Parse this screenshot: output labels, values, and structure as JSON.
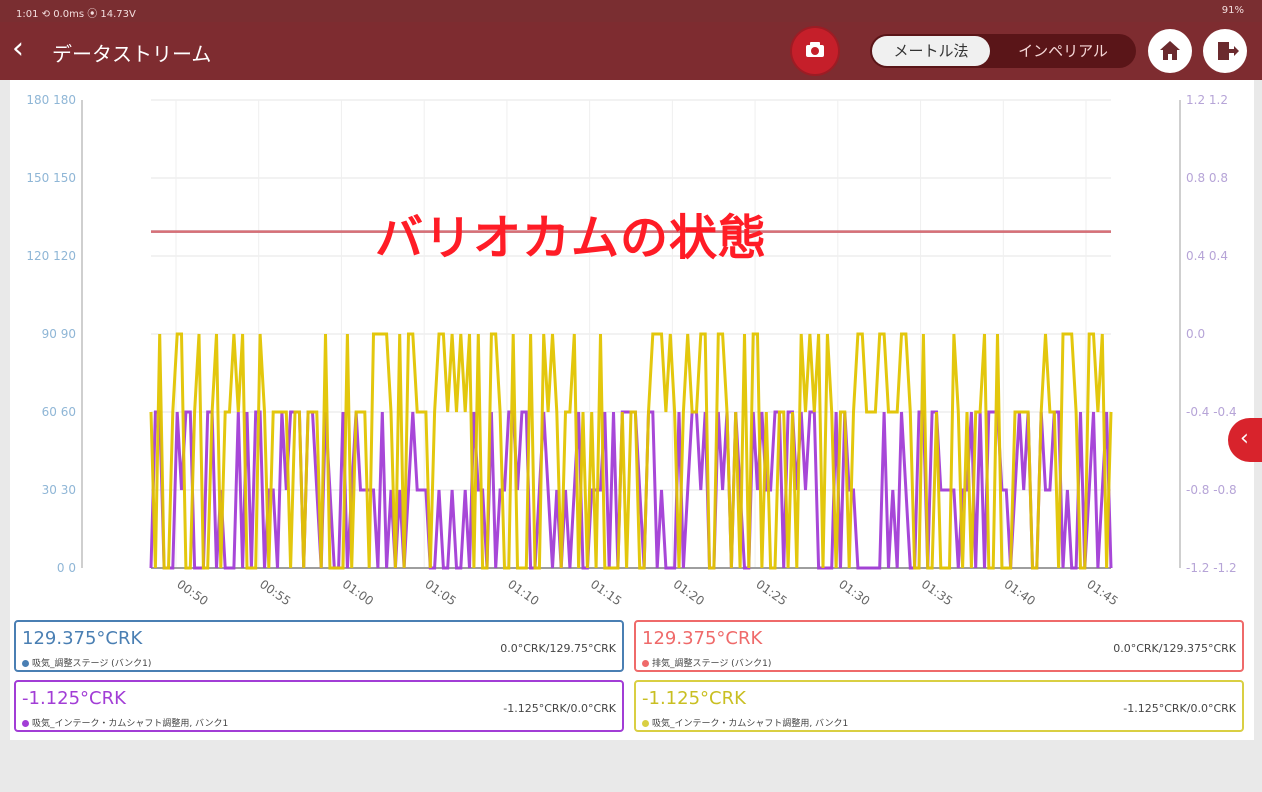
{
  "status_bar": {
    "left": "1:01  ⟲  0.0ms  ⦿  14.73V",
    "right": "91%"
  },
  "app_bar": {
    "title": "データストリーム",
    "back_icon": "chevron-left-icon",
    "camera_icon": "camera-icon",
    "units_toggle": {
      "options": [
        "メートル法",
        "インペリアル"
      ],
      "selected": "メートル法"
    },
    "home_icon": "home-icon",
    "exit_icon": "exit-icon"
  },
  "chart_heading": "バリオカムの状態",
  "chart_data": {
    "type": "line",
    "x": [
      "00:50",
      "00:55",
      "01:00",
      "01:05",
      "01:10",
      "01:15",
      "01:20",
      "01:25",
      "01:30",
      "01:35",
      "01:40",
      "01:45"
    ],
    "y_left_ticks": [
      "180",
      "150",
      "120",
      "90",
      "60",
      "30",
      "0"
    ],
    "y_left_labels_pair": [
      "180 180",
      "150 150",
      "120 120",
      "90 90",
      "60 60",
      "30 30",
      "0 0"
    ],
    "y_right_labels_pair": [
      "1.2 1.2",
      "0.8 0.8",
      "0.4 0.4",
      "0.0",
      "-0.4 -0.4",
      "-0.8 -0.8",
      "-1.2 -1.2"
    ],
    "ylim_left": [
      0,
      180
    ],
    "ylim_right": [
      -1.2,
      1.2
    ],
    "grid": true,
    "series": [
      {
        "name": "吸気_調整ステージ (バンク1)",
        "color": "#4a7fb3",
        "axis": "left",
        "value": 129.375
      },
      {
        "name": "排気_調整ステージ (バンク1)",
        "color": "#ef6a6a",
        "axis": "left",
        "value": 129.375
      },
      {
        "name": "吸気_インテーク・カムシャフト調整用, バンク1",
        "color": "#a23dd6",
        "axis": "right",
        "levels": [
          -1.2,
          -0.8,
          -0.4
        ]
      },
      {
        "name": "吸気_インテーク・カムシャフト調整用, バンク1",
        "color": "#e1c400",
        "axis": "right",
        "levels": [
          -1.2,
          -0.4,
          0.0
        ]
      }
    ]
  },
  "cards": [
    {
      "value": "129.375°CRK",
      "label": "吸気_調整ステージ (バンク1)",
      "range": "0.0°CRK/129.75°CRK",
      "color": "#4a7fb3"
    },
    {
      "value": "129.375°CRK",
      "label": "排気_調整ステージ (バンク1)",
      "range": "0.0°CRK/129.375°CRK",
      "color": "#ef6a6a"
    },
    {
      "value": "-1.125°CRK",
      "label": "吸気_インテーク・カムシャフト調整用, バンク1",
      "range": "-1.125°CRK/0.0°CRK",
      "color": "#a23dd6"
    },
    {
      "value": "-1.125°CRK",
      "label": "吸気_インテーク・カムシャフト調整用, バンク1",
      "range": "-1.125°CRK/0.0°CRK",
      "color": "#d9cf43"
    }
  ],
  "side_tab_icon": "chevron-left-icon"
}
